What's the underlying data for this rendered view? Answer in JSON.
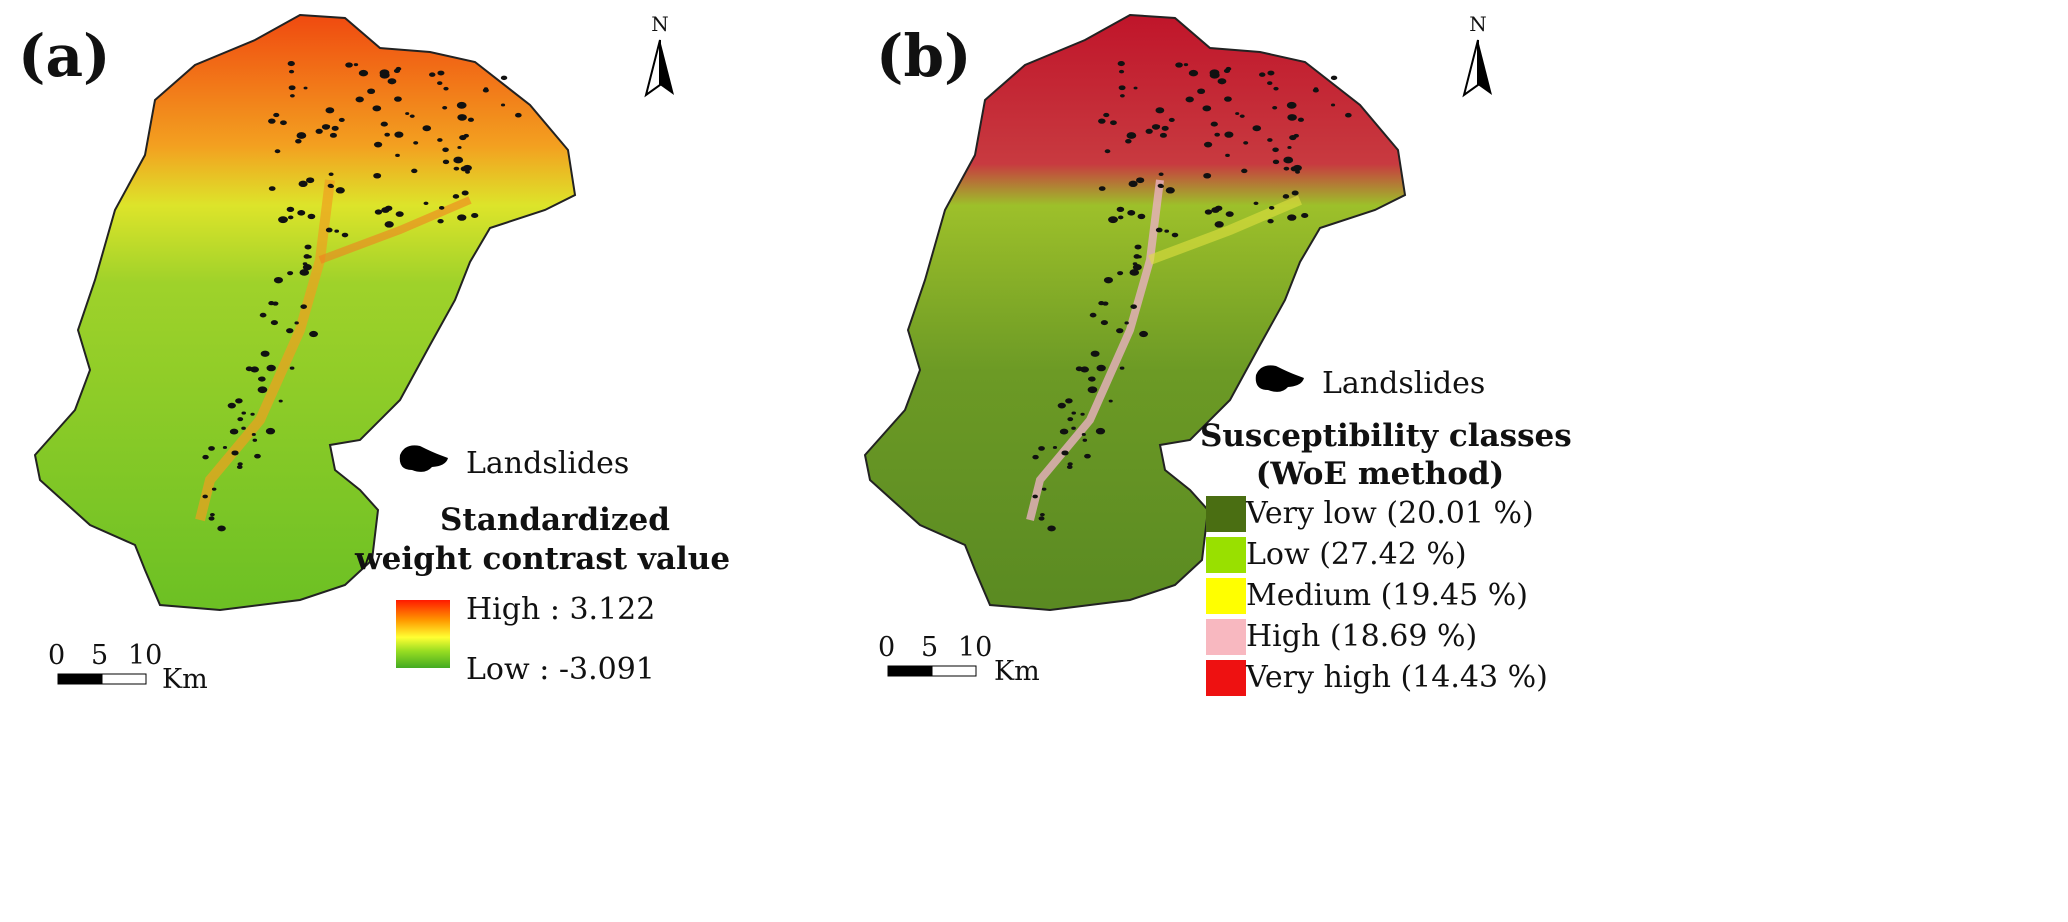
{
  "panel_a": {
    "label": "(a)",
    "north": "N",
    "landslides_label": "Landslides",
    "legend_title_line1": "Standardized",
    "legend_title_line2": "weight contrast value",
    "high_label": "High : 3.122",
    "low_label": "Low : -3.091",
    "ramp_colors": [
      "#ff1a00",
      "#ff9900",
      "#ffff33",
      "#99dd22",
      "#44aa22"
    ],
    "scale": {
      "ticks": [
        "0",
        "5",
        "10"
      ],
      "unit": "Km"
    }
  },
  "panel_b": {
    "label": "(b)",
    "north": "N",
    "landslides_label": "Landslides",
    "legend_title_line1": "Susceptibility classes",
    "legend_title_line2": "(WoE method)",
    "classes": [
      {
        "label": "Very low (20.01 %)",
        "color": "#4a6e12"
      },
      {
        "label": "Low (27.42 %)",
        "color": "#99e000"
      },
      {
        "label": "Medium (19.45 %)",
        "color": "#ffff00"
      },
      {
        "label": "High (18.69 %)",
        "color": "#f8b8c0"
      },
      {
        "label": "Very high (14.43 %)",
        "color": "#ee1111"
      }
    ],
    "scale": {
      "ticks": [
        "0",
        "5",
        "10"
      ],
      "unit": "Km"
    }
  }
}
